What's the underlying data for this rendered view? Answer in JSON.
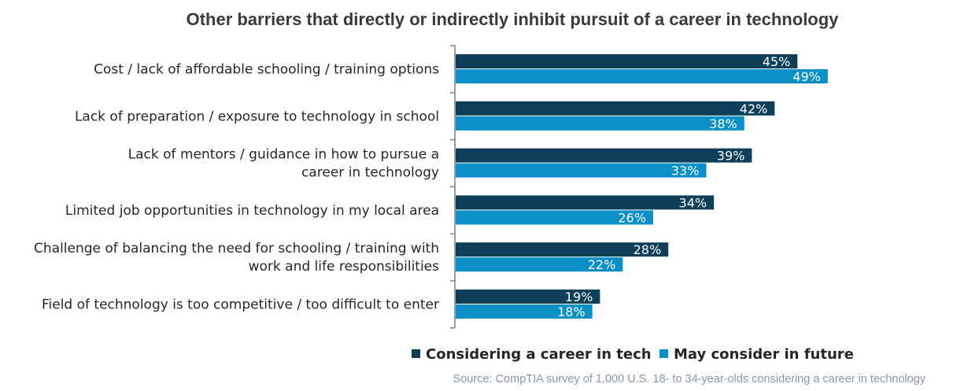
{
  "chart_data": {
    "type": "bar",
    "orientation": "horizontal",
    "title": "Other barriers that directly or indirectly inhibit pursuit of a career in technology",
    "categories": [
      [
        "Cost / lack of affordable schooling / training options"
      ],
      [
        "Lack of preparation / exposure to technology in school"
      ],
      [
        "Lack of mentors / guidance in how to pursue a",
        "career in technology"
      ],
      [
        "Limited job opportunities in technology in my local area"
      ],
      [
        "Challenge of balancing the need for schooling / training with",
        "work and life responsibilities"
      ],
      [
        "Field of technology is too competitive / too difficult to enter"
      ]
    ],
    "series": [
      {
        "name": "Considering a career in tech",
        "color": "#0d3f5a",
        "values": [
          45,
          42,
          39,
          34,
          28,
          19
        ]
      },
      {
        "name": "May consider in future",
        "color": "#0a90c8",
        "values": [
          49,
          38,
          33,
          26,
          22,
          18
        ]
      }
    ],
    "value_suffix": "%",
    "xlim": [
      0,
      100
    ],
    "grid": false,
    "legend_position": "bottom-right",
    "source": "Source: CompTIA survey of 1,000 U.S. 18- to 34-year-olds considering a career in technology"
  }
}
